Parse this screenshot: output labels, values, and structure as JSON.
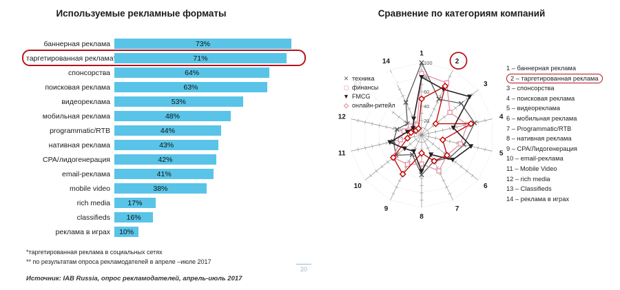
{
  "page_number": "20",
  "accent_color": "#b5121b",
  "left_panel": {
    "title": "Используемые рекламные форматы",
    "footnote_1": "*таргетированная реклама в социальных сетях",
    "footnote_2": "** по результатам опроса рекламодателей в апреле –июле 2017",
    "source": "Источник: IAB Russia, опрос рекламодателей, апрель-июль 2017"
  },
  "right_panel": {
    "title": "Сравнение по категориям компаний",
    "format_list": [
      {
        "n": "1",
        "label": "баннерная реклама",
        "highlighted": false
      },
      {
        "n": "2",
        "label": "таргетированная реклама",
        "highlighted": true
      },
      {
        "n": "3",
        "label": "спонсорства",
        "highlighted": false
      },
      {
        "n": "4",
        "label": "поисковая реклама",
        "highlighted": false
      },
      {
        "n": "5",
        "label": "видеореклама",
        "highlighted": false
      },
      {
        "n": "6",
        "label": "мобильная реклама",
        "highlighted": false
      },
      {
        "n": "7",
        "label": "Programmatic/RTB",
        "highlighted": false
      },
      {
        "n": "8",
        "label": "нативная реклама",
        "highlighted": false
      },
      {
        "n": "9",
        "label": "CPA/Лидогенерация",
        "highlighted": false
      },
      {
        "n": "10",
        "label": "email-реклама",
        "highlighted": false
      },
      {
        "n": "11",
        "label": "Mobile Video",
        "highlighted": false
      },
      {
        "n": "12",
        "label": "rich media",
        "highlighted": false
      },
      {
        "n": "13",
        "label": "Classifieds",
        "highlighted": false
      },
      {
        "n": "14",
        "label": "реклама в играх",
        "highlighted": false
      }
    ]
  },
  "chart_data": [
    {
      "type": "bar",
      "orientation": "horizontal",
      "title": "Используемые рекламные форматы",
      "categories": [
        "баннерная реклама",
        "таргетированная реклама*",
        "спонсорства",
        "поисковая реклама",
        "видеореклама",
        "мобильная реклама",
        "programmatic/RTB",
        "нативная реклама",
        "CPA/лидогенерация",
        "email-реклама",
        "mobile video",
        "rich media",
        "classifieds",
        "реклама в играх"
      ],
      "values": [
        73,
        71,
        64,
        63,
        53,
        48,
        44,
        43,
        42,
        41,
        38,
        17,
        16,
        10
      ],
      "unit": "%",
      "xlim": [
        0,
        100
      ],
      "bar_color": "#59c4e7",
      "highlight_index": 1,
      "highlight_outline_color": "#b5121b"
    },
    {
      "type": "radar",
      "title": "Сравнение по категориям компаний",
      "axes": [
        "1",
        "2",
        "3",
        "4",
        "5",
        "6",
        "7",
        "8",
        "9",
        "10",
        "11",
        "12",
        "13",
        "14"
      ],
      "rlim": [
        0,
        100
      ],
      "ring_values": [
        20,
        40,
        60,
        80,
        100
      ],
      "scale_labels": [
        100,
        80,
        60,
        40,
        20
      ],
      "series": [
        {
          "name": "техника",
          "marker": "x",
          "color": "#58595b",
          "values": [
            100,
            55,
            70,
            75,
            60,
            50,
            40,
            55,
            30,
            45,
            40,
            35,
            25,
            50
          ]
        },
        {
          "name": "финансы",
          "marker": "square",
          "color": "#e78fa3",
          "values": [
            85,
            80,
            50,
            65,
            55,
            45,
            55,
            40,
            45,
            50,
            30,
            25,
            20,
            15
          ]
        },
        {
          "name": "FMCG",
          "marker": "triangle-down",
          "color": "#231f20",
          "values": [
            80,
            70,
            85,
            45,
            70,
            55,
            30,
            50,
            25,
            30,
            45,
            20,
            15,
            25
          ]
        },
        {
          "name": "онлайн-ритейл",
          "marker": "diamond",
          "color": "#c00000",
          "values": [
            50,
            75,
            25,
            70,
            30,
            45,
            40,
            25,
            60,
            50,
            20,
            15,
            10,
            10
          ]
        }
      ],
      "annotation": {
        "circled_axis_index": 1,
        "circle_color": "#b5121b"
      },
      "legend_position": "left"
    }
  ]
}
